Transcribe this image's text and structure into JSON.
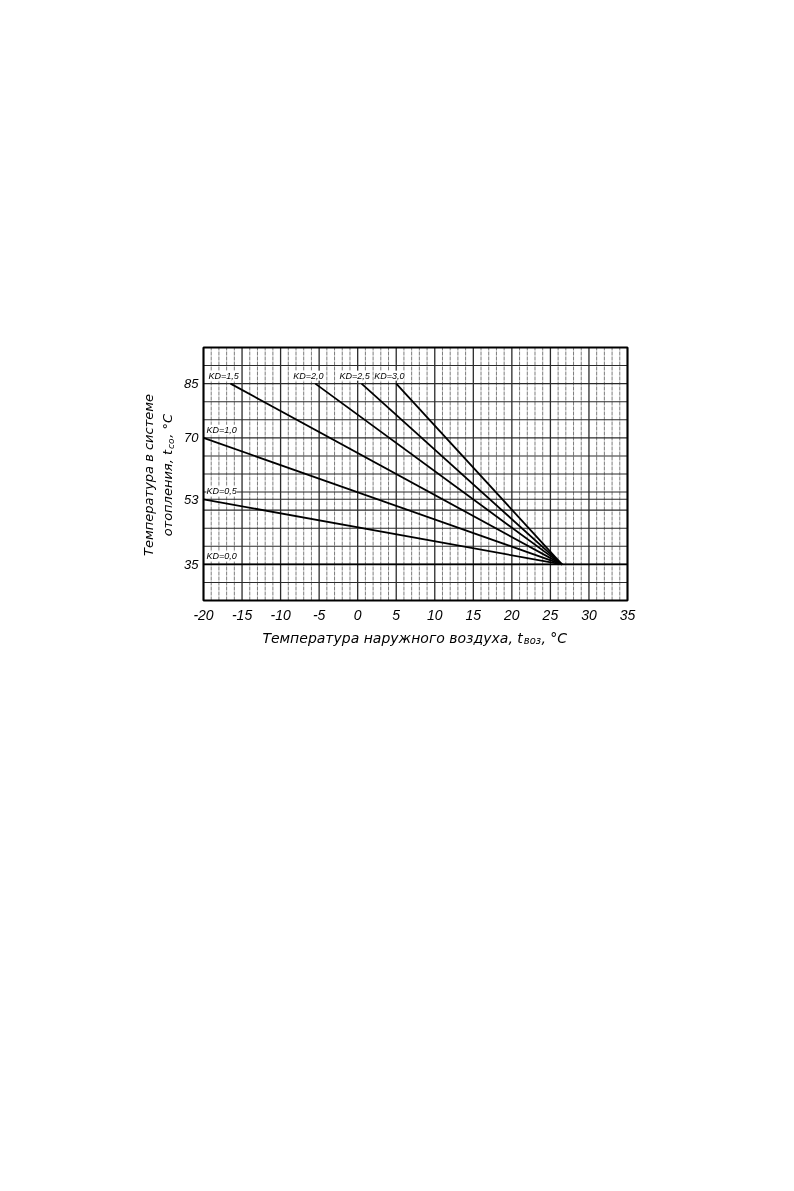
{
  "chart_data": {
    "type": "line",
    "xlabel": "Температура наружного воздуха, t$_{воз}$, °C",
    "ylabel": "Температура в системе\nотопления, t$_{со}$, °C",
    "xlim": [
      -20,
      35
    ],
    "ylim": [
      25,
      95
    ],
    "xticks": [
      -20,
      -15,
      -10,
      -5,
      0,
      5,
      10,
      15,
      20,
      25,
      30,
      35
    ],
    "yticks": [
      {
        "value": 30,
        "label": null
      },
      35,
      {
        "value": 40,
        "label": null
      },
      {
        "value": 45,
        "label": null
      },
      {
        "value": 50,
        "label": null
      },
      53,
      {
        "value": 55,
        "label": null
      },
      {
        "value": 60,
        "label": null
      },
      {
        "value": 65,
        "label": null
      },
      70,
      {
        "value": 75,
        "label": null
      },
      {
        "value": 80,
        "label": null
      },
      85,
      {
        "value": 90,
        "label": null
      }
    ],
    "grid": true,
    "line_style": "solid",
    "series": [
      {
        "name": "KD=0,0",
        "color": "#000000",
        "x": [
          -20,
          35
        ],
        "values": [
          35,
          35
        ]
      },
      {
        "name": "KD=0,5",
        "color": "#000000",
        "x": [
          -20,
          26.5
        ],
        "values": [
          53,
          35
        ]
      },
      {
        "name": "KD=1,0",
        "color": "#000000",
        "x": [
          -20,
          26.5
        ],
        "values": [
          70,
          35
        ]
      },
      {
        "name": "KD=1,5",
        "color": "#000000",
        "x": [
          -16.5,
          26.5
        ],
        "values": [
          85,
          35
        ]
      },
      {
        "name": "KD=2,0",
        "color": "#000000",
        "x": [
          -5.5,
          26.5
        ],
        "values": [
          85,
          35
        ]
      },
      {
        "name": "KD=2,5",
        "color": "#000000",
        "x": [
          0.5,
          26.5
        ],
        "values": [
          85,
          35
        ]
      },
      {
        "name": "KD=3,0",
        "color": "#000000",
        "x": [
          5,
          26.5
        ],
        "values": [
          85,
          35
        ]
      }
    ]
  }
}
